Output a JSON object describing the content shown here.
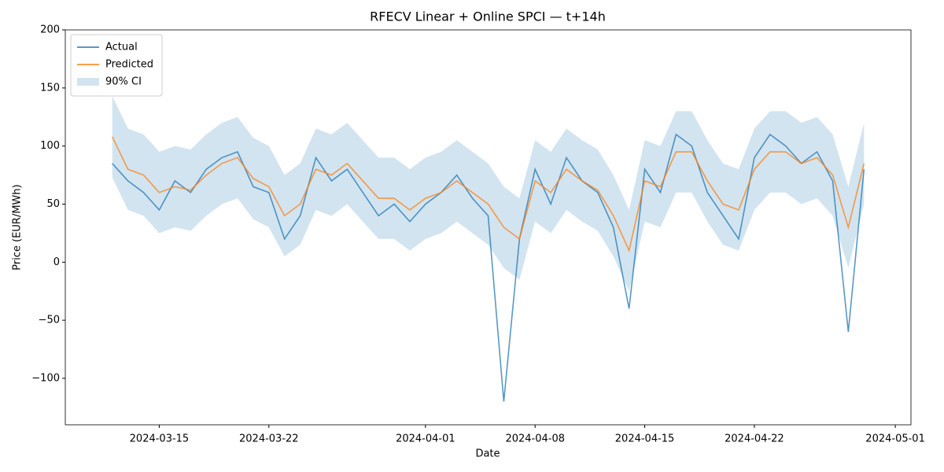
{
  "chart_data": {
    "type": "line",
    "title": "RFECV Linear + Online SPCI — t+14h",
    "x_label": "Date",
    "y_label": "Price (EUR/MWh)",
    "x": [
      "2024-03-12",
      "2024-03-13",
      "2024-03-14",
      "2024-03-15",
      "2024-03-16",
      "2024-03-17",
      "2024-03-18",
      "2024-03-19",
      "2024-03-20",
      "2024-03-21",
      "2024-03-22",
      "2024-03-23",
      "2024-03-24",
      "2024-03-25",
      "2024-03-26",
      "2024-03-27",
      "2024-03-28",
      "2024-03-29",
      "2024-03-30",
      "2024-03-31",
      "2024-04-01",
      "2024-04-02",
      "2024-04-03",
      "2024-04-04",
      "2024-04-05",
      "2024-04-06",
      "2024-04-07",
      "2024-04-08",
      "2024-04-09",
      "2024-04-10",
      "2024-04-11",
      "2024-04-12",
      "2024-04-13",
      "2024-04-14",
      "2024-04-15",
      "2024-04-16",
      "2024-04-17",
      "2024-04-18",
      "2024-04-19",
      "2024-04-20",
      "2024-04-21",
      "2024-04-22",
      "2024-04-23",
      "2024-04-24",
      "2024-04-25",
      "2024-04-26",
      "2024-04-27",
      "2024-04-28",
      "2024-04-29"
    ],
    "interval": {
      "name": "90% CI",
      "color": "#1f77b4",
      "lower": [
        73,
        45,
        40,
        25,
        30,
        27,
        40,
        50,
        55,
        37,
        30,
        5,
        15,
        45,
        40,
        50,
        35,
        20,
        20,
        10,
        20,
        25,
        35,
        25,
        15,
        -5,
        -15,
        35,
        25,
        45,
        35,
        27,
        5,
        -25,
        35,
        30,
        60,
        60,
        35,
        15,
        10,
        45,
        60,
        60,
        50,
        55,
        40,
        -5,
        50
      ],
      "upper": [
        143,
        115,
        110,
        95,
        100,
        97,
        110,
        120,
        125,
        107,
        100,
        75,
        85,
        115,
        110,
        120,
        105,
        90,
        90,
        80,
        90,
        95,
        105,
        95,
        85,
        65,
        55,
        105,
        95,
        115,
        105,
        97,
        75,
        45,
        105,
        100,
        130,
        130,
        105,
        85,
        80,
        115,
        130,
        130,
        120,
        125,
        110,
        65,
        120
      ]
    },
    "series": [
      {
        "name": "Actual",
        "color": "#1f77b4",
        "values": [
          85,
          70,
          60,
          45,
          70,
          60,
          80,
          90,
          95,
          65,
          60,
          20,
          40,
          90,
          70,
          80,
          60,
          40,
          50,
          35,
          50,
          60,
          75,
          55,
          40,
          -120,
          20,
          80,
          50,
          90,
          70,
          60,
          30,
          -40,
          80,
          60,
          110,
          100,
          60,
          40,
          20,
          90,
          110,
          100,
          85,
          95,
          70,
          -60,
          80
        ]
      },
      {
        "name": "Predicted",
        "color": "#ff7f0e",
        "values": [
          108,
          80,
          75,
          60,
          65,
          62,
          75,
          85,
          90,
          72,
          65,
          40,
          50,
          80,
          75,
          85,
          70,
          55,
          55,
          45,
          55,
          60,
          70,
          60,
          50,
          30,
          20,
          70,
          60,
          80,
          70,
          62,
          40,
          10,
          70,
          65,
          95,
          95,
          70,
          50,
          45,
          80,
          95,
          95,
          85,
          90,
          75,
          30,
          85
        ]
      }
    ],
    "xlim": [
      "2024-03-09",
      "2024-05-02"
    ],
    "xticks": [
      "2024-03-15",
      "2024-03-22",
      "2024-04-01",
      "2024-04-08",
      "2024-04-15",
      "2024-04-22",
      "2024-05-01"
    ],
    "ylim": [
      -140,
      200
    ],
    "yticks": [
      {
        "value": -100,
        "label": "−100"
      },
      {
        "value": -50,
        "label": "−50"
      },
      0,
      50,
      100,
      150,
      200
    ],
    "legend": "upper left",
    "grid": false
  }
}
